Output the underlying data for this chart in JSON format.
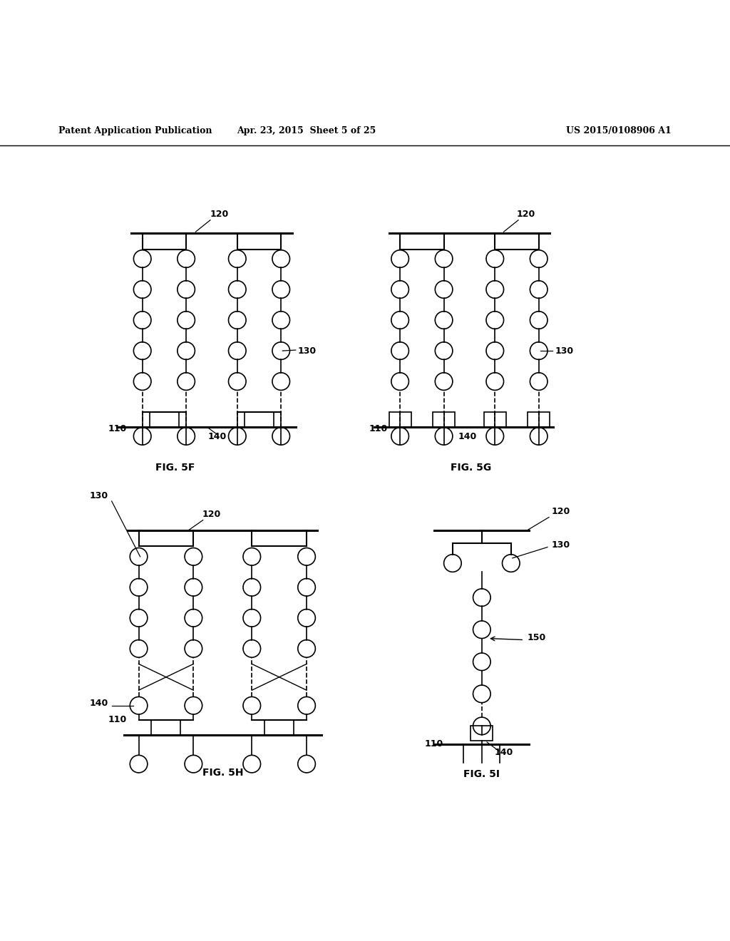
{
  "title_left": "Patent Application Publication",
  "title_center": "Apr. 23, 2015  Sheet 5 of 25",
  "title_right": "US 2015/0108906 A1",
  "bg_color": "#ffffff",
  "line_color": "#000000",
  "fig_labels": [
    "FIG. 5F",
    "FIG. 5G",
    "FIG. 5H",
    "FIG. 5I"
  ]
}
